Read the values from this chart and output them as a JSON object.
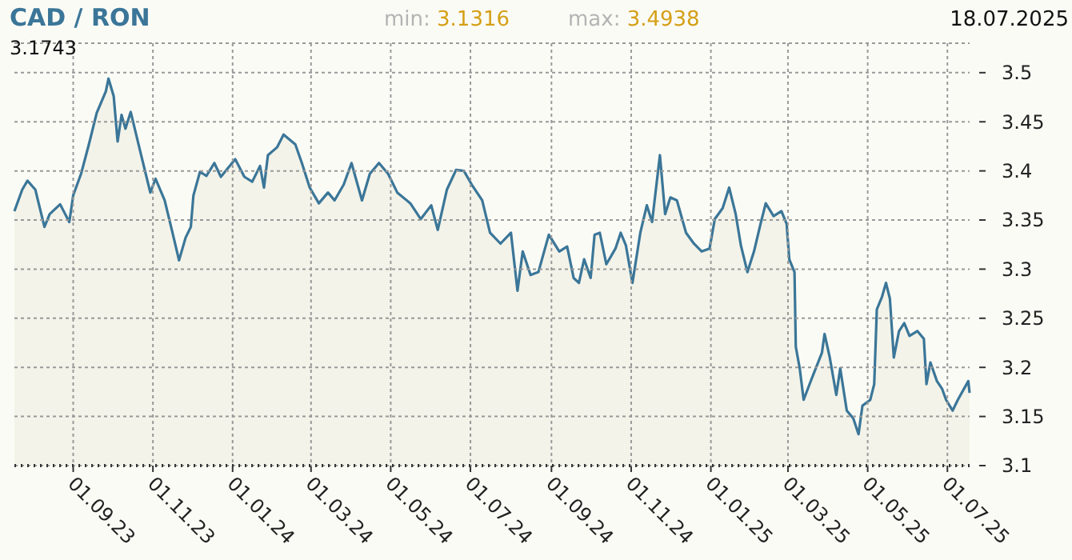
{
  "chart_data": {
    "type": "area",
    "title": "CAD / RON",
    "annotations": [
      "min: 3.1316",
      "max: 3.4938",
      "18.07.2025",
      "3.1743"
    ],
    "x": [
      "2023-07-18",
      "2023-07-24",
      "2023-07-28",
      "2023-08-03",
      "2023-08-10",
      "2023-08-14",
      "2023-08-22",
      "2023-08-29",
      "2023-09-01",
      "2023-09-07",
      "2023-09-13",
      "2023-09-19",
      "2023-09-26",
      "2023-09-28",
      "2023-10-02",
      "2023-10-05",
      "2023-10-08",
      "2023-10-11",
      "2023-10-15",
      "2023-10-23",
      "2023-10-30",
      "2023-11-03",
      "2023-11-10",
      "2023-11-16",
      "2023-11-21",
      "2023-11-26",
      "2023-11-30",
      "2023-12-02",
      "2023-12-07",
      "2023-12-12",
      "2023-12-18",
      "2023-12-23",
      "2024-01-03",
      "2024-01-10",
      "2024-01-16",
      "2024-01-22",
      "2024-01-25",
      "2024-01-28",
      "2024-02-04",
      "2024-02-09",
      "2024-02-18",
      "2024-02-23",
      "2024-02-29",
      "2024-03-07",
      "2024-03-14",
      "2024-03-19",
      "2024-03-26",
      "2024-04-01",
      "2024-04-09",
      "2024-04-15",
      "2024-04-22",
      "2024-04-29",
      "2024-05-06",
      "2024-05-16",
      "2024-05-24",
      "2024-06-01",
      "2024-06-06",
      "2024-06-13",
      "2024-06-20",
      "2024-06-26",
      "2024-07-02",
      "2024-07-10",
      "2024-07-16",
      "2024-07-24",
      "2024-08-01",
      "2024-08-06",
      "2024-08-10",
      "2024-08-16",
      "2024-08-22",
      "2024-08-30",
      "2024-09-07",
      "2024-09-13",
      "2024-09-18",
      "2024-09-22",
      "2024-09-26",
      "2024-10-01",
      "2024-10-04",
      "2024-10-08",
      "2024-10-13",
      "2024-10-20",
      "2024-10-24",
      "2024-10-28",
      "2024-11-02",
      "2024-11-08",
      "2024-11-13",
      "2024-11-17",
      "2024-11-23",
      "2024-11-27",
      "2024-12-01",
      "2024-12-06",
      "2024-12-13",
      "2024-12-19",
      "2024-12-25",
      "2024-12-31",
      "2025-01-04",
      "2025-01-10",
      "2025-01-15",
      "2025-01-20",
      "2025-01-24",
      "2025-01-29",
      "2025-02-03",
      "2025-02-08",
      "2025-02-12",
      "2025-02-18",
      "2025-02-24",
      "2025-02-28",
      "2025-03-02",
      "2025-03-06",
      "2025-03-07",
      "2025-03-10",
      "2025-03-13",
      "2025-03-19",
      "2025-03-27",
      "2025-03-29",
      "2025-04-02",
      "2025-04-07",
      "2025-04-10",
      "2025-04-15",
      "2025-04-20",
      "2025-04-24",
      "2025-04-27",
      "2025-05-03",
      "2025-05-06",
      "2025-05-08",
      "2025-05-12",
      "2025-05-15",
      "2025-05-18",
      "2025-05-21",
      "2025-05-25",
      "2025-05-29",
      "2025-06-02",
      "2025-06-08",
      "2025-06-13",
      "2025-06-15",
      "2025-06-18",
      "2025-06-23",
      "2025-06-27",
      "2025-06-30",
      "2025-07-05",
      "2025-07-09",
      "2025-07-17",
      "2025-07-18"
    ],
    "series": [
      {
        "color": "#3b7698",
        "values": [
          3.359,
          3.381,
          3.39,
          3.381,
          3.343,
          3.356,
          3.366,
          3.348,
          3.375,
          3.397,
          3.427,
          3.459,
          3.481,
          3.494,
          3.476,
          3.43,
          3.457,
          3.443,
          3.46,
          3.416,
          3.378,
          3.392,
          3.37,
          3.337,
          3.309,
          3.332,
          3.343,
          3.375,
          3.399,
          3.395,
          3.408,
          3.394,
          3.412,
          3.394,
          3.389,
          3.405,
          3.383,
          3.416,
          3.424,
          3.437,
          3.427,
          3.408,
          3.383,
          3.367,
          3.378,
          3.37,
          3.386,
          3.408,
          3.37,
          3.397,
          3.408,
          3.397,
          3.378,
          3.367,
          3.351,
          3.365,
          3.34,
          3.381,
          3.401,
          3.4,
          3.386,
          3.37,
          3.337,
          3.326,
          3.337,
          3.278,
          3.318,
          3.294,
          3.297,
          3.335,
          3.318,
          3.323,
          3.291,
          3.286,
          3.31,
          3.291,
          3.335,
          3.337,
          3.305,
          3.321,
          3.337,
          3.324,
          3.286,
          3.337,
          3.365,
          3.348,
          3.416,
          3.356,
          3.373,
          3.37,
          3.337,
          3.326,
          3.318,
          3.321,
          3.351,
          3.362,
          3.383,
          3.356,
          3.324,
          3.297,
          3.318,
          3.346,
          3.367,
          3.354,
          3.359,
          3.346,
          3.31,
          3.297,
          3.221,
          3.199,
          3.167,
          3.188,
          3.215,
          3.234,
          3.21,
          3.172,
          3.199,
          3.156,
          3.148,
          3.132,
          3.161,
          3.167,
          3.183,
          3.259,
          3.272,
          3.286,
          3.27,
          3.21,
          3.237,
          3.245,
          3.232,
          3.237,
          3.229,
          3.183,
          3.205,
          3.186,
          3.178,
          3.167,
          3.156,
          3.167,
          3.186,
          3.174
        ]
      }
    ],
    "xlim": [
      "2023-07-18",
      "2025-07-18"
    ],
    "xticks": [
      {
        "value": "2023-09-01",
        "label": "01.09.23"
      },
      {
        "value": "2023-11-01",
        "label": "01.11.23"
      },
      {
        "value": "2024-01-01",
        "label": "01.01.24"
      },
      {
        "value": "2024-03-01",
        "label": "01.03.24"
      },
      {
        "value": "2024-05-01",
        "label": "01.05.24"
      },
      {
        "value": "2024-07-01",
        "label": "01.07.24"
      },
      {
        "value": "2024-09-01",
        "label": "01.09.24"
      },
      {
        "value": "2024-11-01",
        "label": "01.11.24"
      },
      {
        "value": "2025-01-01",
        "label": "01.01.25"
      },
      {
        "value": "2025-03-01",
        "label": "01.03.25"
      },
      {
        "value": "2025-05-01",
        "label": "01.05.25"
      },
      {
        "value": "2025-07-01",
        "label": "01.07.25"
      }
    ],
    "ylim": [
      3.1,
      3.53
    ],
    "yticks": [
      3.1,
      3.15,
      3.2,
      3.25,
      3.3,
      3.35,
      3.4,
      3.45,
      3.5
    ],
    "grid": true,
    "marker": "none",
    "line_style": "solid"
  }
}
